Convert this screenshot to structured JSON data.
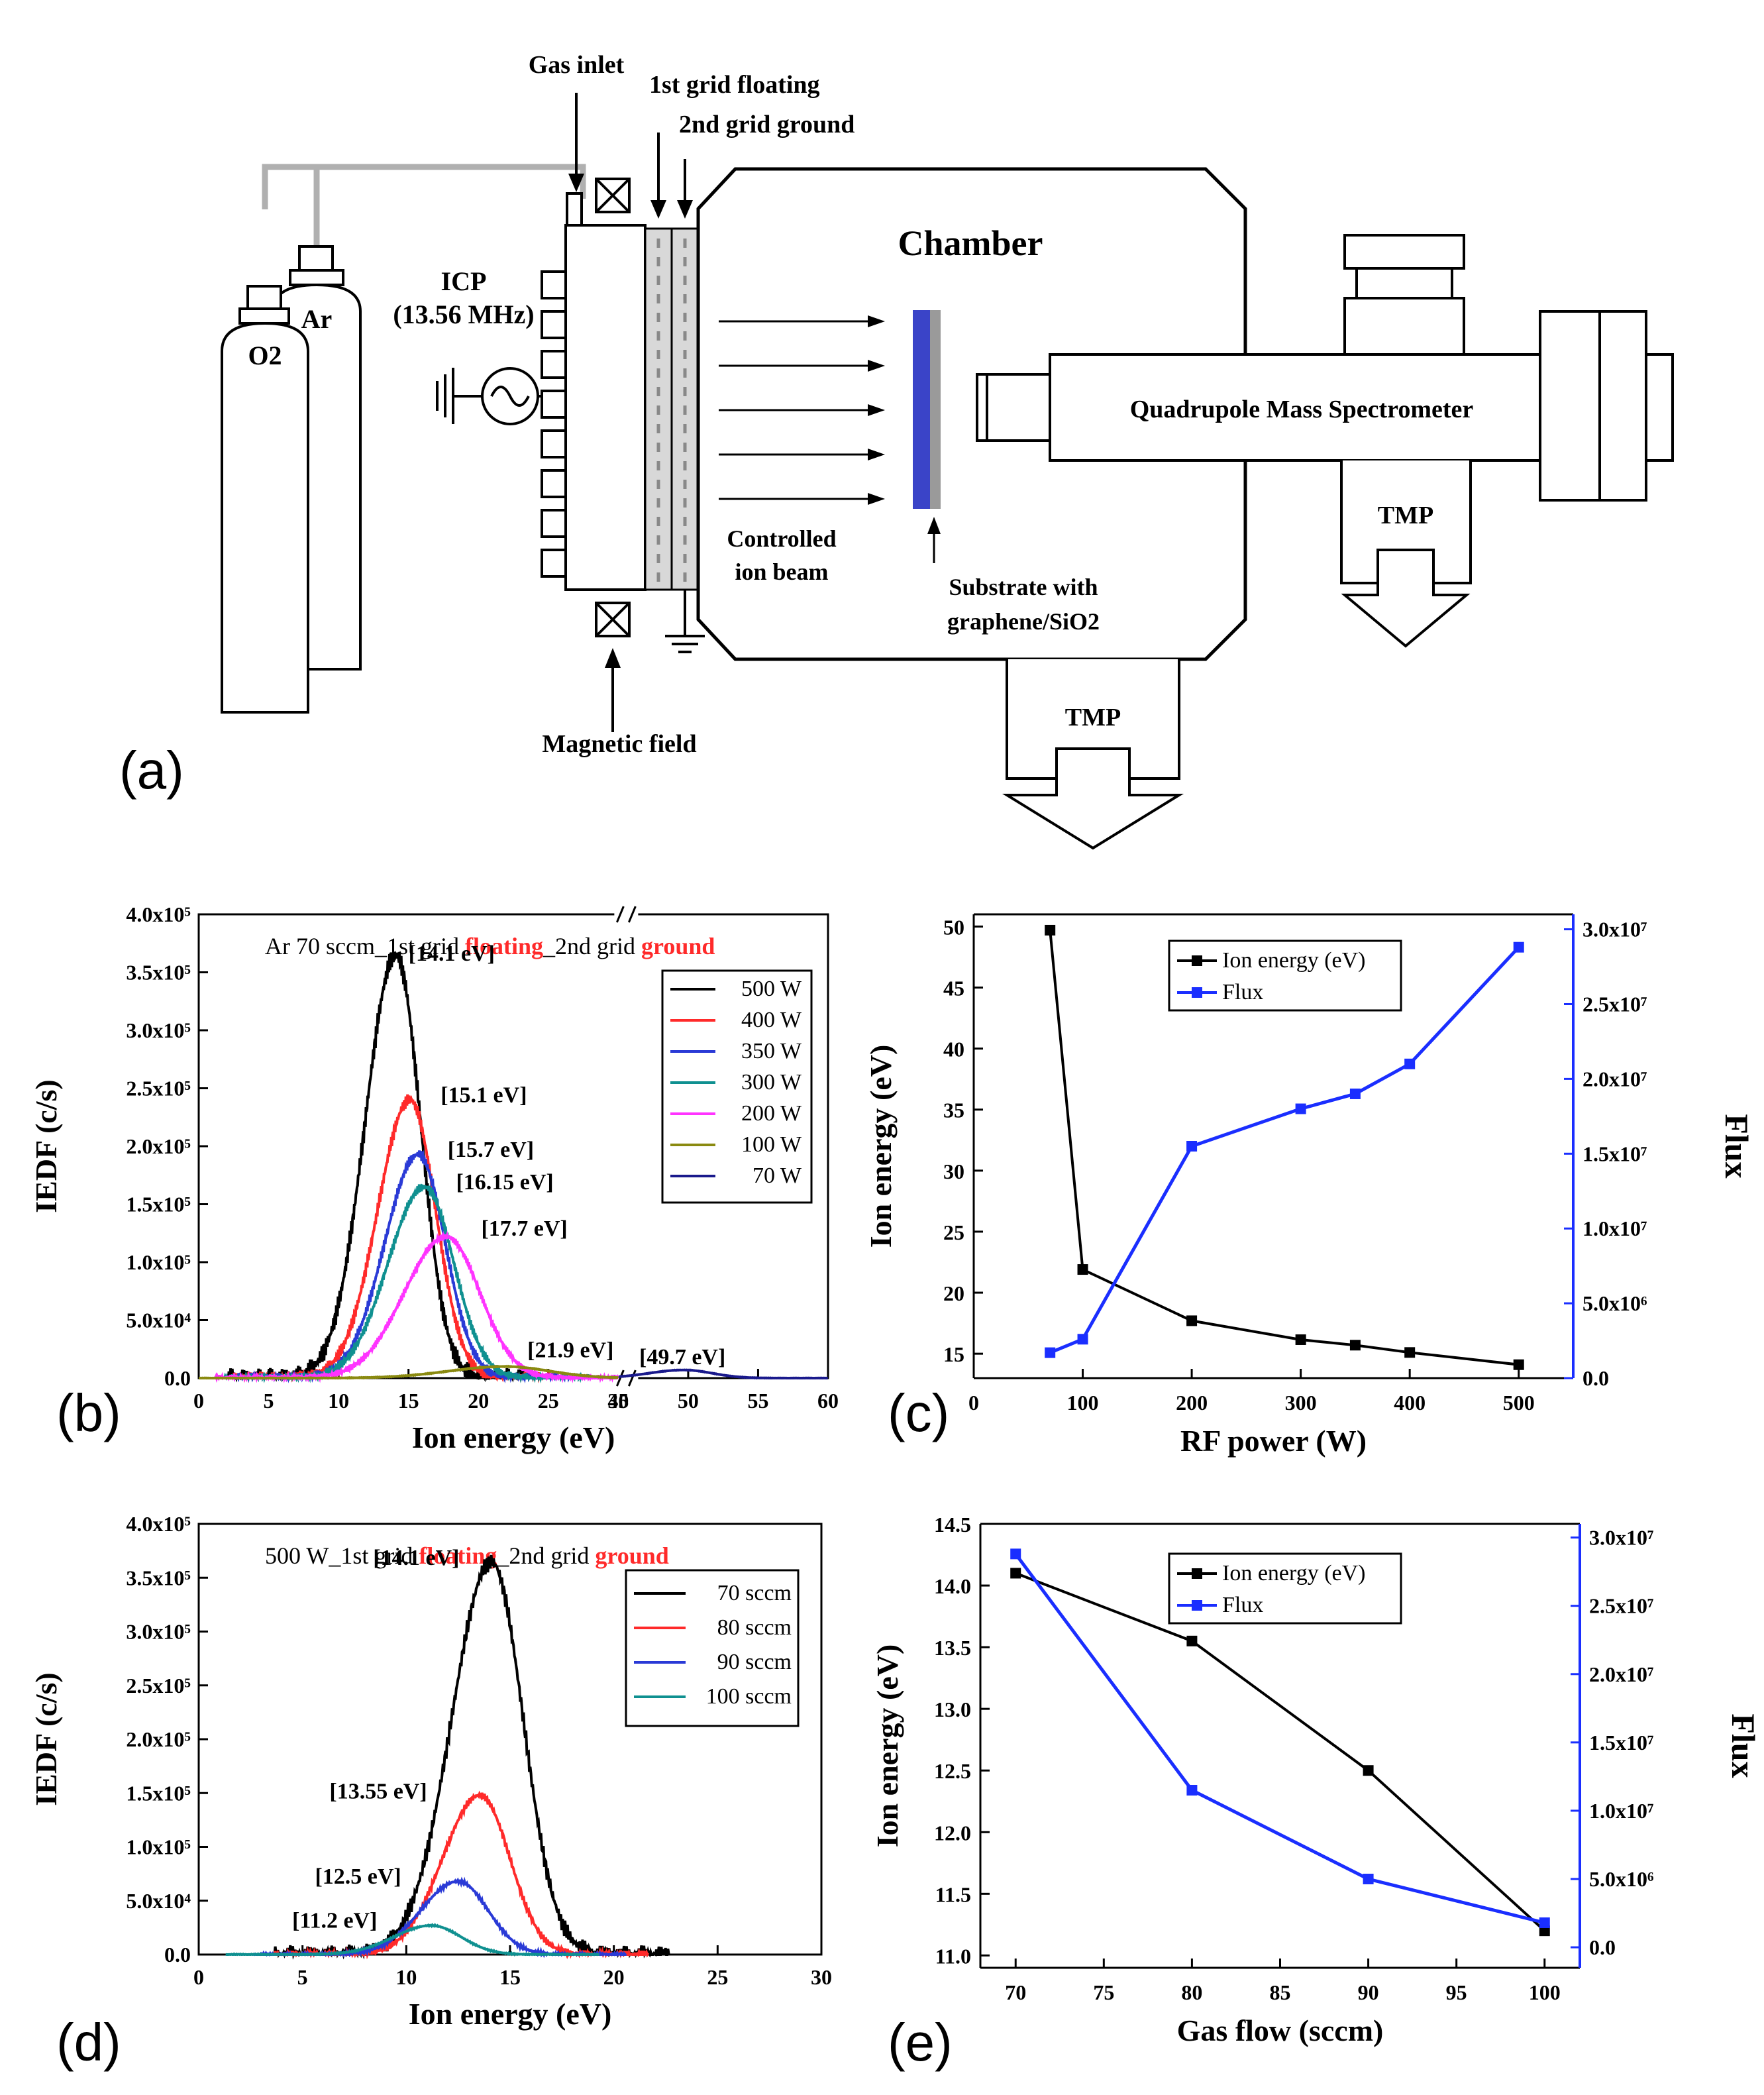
{
  "panels": {
    "a": "(a)",
    "b": "(b)",
    "c": "(c)",
    "d": "(d)",
    "e": "(e)"
  },
  "schematic": {
    "gas_inlet": "Gas inlet",
    "grid1": "1st grid floating",
    "grid2": "2nd grid ground",
    "chamber": "Chamber",
    "icp": "ICP",
    "icp_freq": "(13.56 MHz)",
    "o2": "O2",
    "ar": "Ar",
    "qms": "Quadrupole Mass Spectrometer",
    "tmp_right": "TMP",
    "tmp_bottom": "TMP",
    "controlled1": "Controlled",
    "controlled2": "ion beam",
    "substrate1": "Substrate with",
    "substrate2": "graphene/SiO2",
    "magnetic": "Magnetic field"
  },
  "colors": {
    "blue": "#2a3ad6",
    "red": "#ff2a2a",
    "teal": "#0f9090",
    "magenta": "#ff33ff",
    "olive": "#8a8a10",
    "navy": "#1a1a8c",
    "black": "#000000",
    "flux": "#1a2eff"
  },
  "chart_data": [
    {
      "id": "b",
      "type": "line",
      "title_parts": [
        "Ar 70 sccm_1st  grid ",
        "floating",
        "_2nd grid ",
        "ground"
      ],
      "xlabel": "Ion energy (eV)",
      "ylabel": "IEDF (c/s)",
      "xlim": [
        0,
        60
      ],
      "ylim": [
        0,
        400000
      ],
      "x_ticks": [
        "0",
        "5",
        "10",
        "15",
        "20",
        "25",
        "30",
        "45",
        "50",
        "55",
        "60"
      ],
      "y_ticks": [
        "0.0",
        "5.0x10⁴",
        "1.0x10⁵",
        "1.5x10⁵",
        "2.0x10⁵",
        "2.5x10⁵",
        "3.0x10⁵",
        "3.5x10⁵",
        "4.0x10⁵"
      ],
      "legend": [
        "500 W",
        "400 W",
        "350 W",
        "300 W",
        "200 W",
        "100 W",
        "70 W"
      ],
      "series": [
        {
          "name": "500 W",
          "peak_x": 14.1,
          "peak_y": 365000,
          "sigma": 2.2
        },
        {
          "name": "400 W",
          "peak_x": 15.1,
          "peak_y": 240000,
          "sigma": 2.3
        },
        {
          "name": "350 W",
          "peak_x": 15.7,
          "peak_y": 193000,
          "sigma": 2.4
        },
        {
          "name": "300 W",
          "peak_x": 16.15,
          "peak_y": 165000,
          "sigma": 2.6
        },
        {
          "name": "200 W",
          "peak_x": 17.7,
          "peak_y": 122000,
          "sigma": 3.0
        },
        {
          "name": "100 W",
          "peak_x": 21.9,
          "peak_y": 10000,
          "sigma": 4.0
        },
        {
          "name": "70 W",
          "peak_x": 49.7,
          "peak_y": 7000,
          "sigma": 2.5
        }
      ],
      "annotations": [
        "[14.1 eV]",
        "[15.1 eV]",
        "[15.7 eV]",
        "[16.15 eV]",
        "[17.7 eV]",
        "[21.9 eV]",
        "[49.7 eV]"
      ]
    },
    {
      "id": "c",
      "type": "line",
      "xlabel": "RF power (W)",
      "ylabel": "Ion energy (eV)",
      "y2label": "Flux",
      "xlim": [
        0,
        550
      ],
      "ylim": [
        13,
        51
      ],
      "y2lim": [
        0,
        31000000
      ],
      "x_ticks": [
        "0",
        "100",
        "200",
        "300",
        "400",
        "500"
      ],
      "y_ticks": [
        "15",
        "20",
        "25",
        "30",
        "35",
        "40",
        "45",
        "50"
      ],
      "y2_ticks": [
        "0.0",
        "5.0x10⁶",
        "1.0x10⁷",
        "1.5x10⁷",
        "2.0x10⁷",
        "2.5x10⁷",
        "3.0x10⁷"
      ],
      "legend": [
        "Ion energy (eV)",
        "Flux"
      ],
      "x": [
        70,
        100,
        200,
        300,
        350,
        400,
        500
      ],
      "series": [
        {
          "name": "Ion energy (eV)",
          "axis": "left",
          "values": [
            49.7,
            21.9,
            17.7,
            16.15,
            15.7,
            15.1,
            14.1
          ]
        },
        {
          "name": "Flux",
          "axis": "right",
          "values": [
            1700000,
            2600000,
            15500000,
            18000000,
            19000000,
            21000000,
            28800000
          ]
        }
      ]
    },
    {
      "id": "d",
      "type": "line",
      "title_parts": [
        "500 W_1st  grid ",
        "floating",
        "_2nd grid ",
        "ground"
      ],
      "xlabel": "Ion energy (eV)",
      "ylabel": "IEDF (c/s)",
      "xlim": [
        0,
        30
      ],
      "ylim": [
        0,
        400000
      ],
      "x_ticks": [
        "0",
        "5",
        "10",
        "15",
        "20",
        "25",
        "30"
      ],
      "y_ticks": [
        "0.0",
        "5.0x10⁴",
        "1.0x10⁵",
        "1.5x10⁵",
        "2.0x10⁵",
        "2.5x10⁵",
        "3.0x10⁵",
        "3.5x10⁵",
        "4.0x10⁵"
      ],
      "legend": [
        "70 sccm",
        "80 sccm",
        "90 sccm",
        "100 sccm"
      ],
      "series": [
        {
          "name": "70 sccm",
          "peak_x": 14.1,
          "peak_y": 365000,
          "sigma": 1.9
        },
        {
          "name": "80 sccm",
          "peak_x": 13.55,
          "peak_y": 148000,
          "sigma": 1.8
        },
        {
          "name": "90 sccm",
          "peak_x": 12.5,
          "peak_y": 68000,
          "sigma": 1.8
        },
        {
          "name": "100 sccm",
          "peak_x": 11.2,
          "peak_y": 27000,
          "sigma": 1.8
        }
      ],
      "annotations": [
        "[14.1 eV]",
        "[13.55 eV]",
        "[12.5 eV]",
        "[11.2 eV]"
      ]
    },
    {
      "id": "e",
      "type": "line",
      "xlabel": "Gas flow (sccm)",
      "ylabel": "Ion energy (eV)",
      "y2label": "Flux",
      "xlim": [
        68,
        102
      ],
      "ylim": [
        10.9,
        14.5
      ],
      "y2lim": [
        -1500000,
        31000000
      ],
      "x_ticks": [
        "70",
        "75",
        "80",
        "85",
        "90",
        "95",
        "100"
      ],
      "y_ticks": [
        "11.0",
        "11.5",
        "12.0",
        "12.5",
        "13.0",
        "13.5",
        "14.0",
        "14.5"
      ],
      "y2_ticks": [
        "0.0",
        "5.0x10⁶",
        "1.0x10⁷",
        "1.5x10⁷",
        "2.0x10⁷",
        "2.5x10⁷",
        "3.0x10⁷"
      ],
      "legend": [
        "Ion energy (eV)",
        "Flux"
      ],
      "x": [
        70,
        80,
        90,
        100
      ],
      "series": [
        {
          "name": "Ion energy (eV)",
          "axis": "left",
          "values": [
            14.1,
            13.55,
            12.5,
            11.2
          ]
        },
        {
          "name": "Flux",
          "axis": "right",
          "values": [
            28800000,
            11500000,
            5000000,
            1800000
          ]
        }
      ]
    }
  ]
}
